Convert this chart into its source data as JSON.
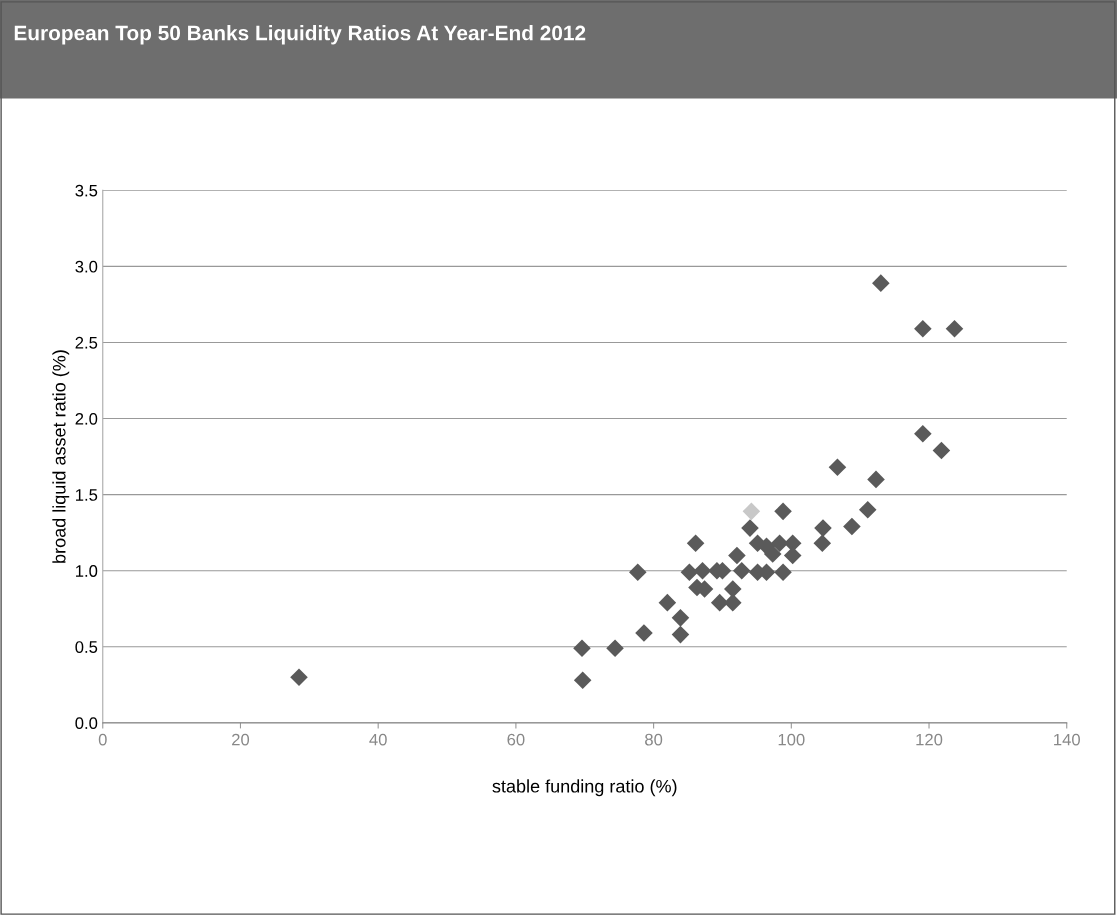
{
  "chart_data": {
    "type": "scatter",
    "title": "European Top 50 Banks Liquidity Ratios At Year-End 2012",
    "xlabel": "stable funding ratio (%)",
    "ylabel": "broad liquid asset ratio (%)",
    "series": [
      {
        "color": "#5a5a5a",
        "x": [
          28.5,
          69.6,
          69.7,
          74.4,
          77.7,
          78.6,
          82.0,
          83.9,
          83.9,
          85.2,
          86.1,
          86.3,
          87.1,
          87.4,
          89.2,
          90.0,
          89.6,
          91.5,
          91.5,
          92.1,
          92.8,
          94.0,
          95.1,
          95.1,
          96.4,
          96.4,
          97.3,
          98.3,
          98.8,
          98.8,
          100.2,
          100.2,
          104.5,
          104.6,
          106.7,
          108.8,
          111.1,
          112.3,
          113.0,
          119.1,
          119.1,
          121.8,
          123.7
        ],
        "values": [
          0.3,
          0.49,
          0.28,
          0.49,
          0.99,
          0.59,
          0.79,
          0.69,
          0.58,
          0.99,
          1.18,
          0.89,
          1.0,
          0.88,
          1.0,
          1.0,
          0.79,
          0.79,
          0.88,
          1.1,
          1.0,
          1.28,
          1.18,
          0.99,
          1.16,
          0.99,
          1.11,
          1.18,
          1.39,
          0.99,
          1.18,
          1.1,
          1.18,
          1.28,
          1.68,
          1.29,
          1.4,
          1.6,
          2.89,
          2.59,
          1.9,
          1.79,
          2.59
        ]
      },
      {
        "color": "#c8c8c8",
        "x": [
          94.2
        ],
        "values": [
          1.39
        ]
      }
    ],
    "xlim": [
      0,
      140
    ],
    "xticks": [
      0,
      20,
      40,
      60,
      80,
      100,
      120,
      140
    ],
    "ylim": [
      0,
      3.5
    ],
    "yticks": [
      {
        "value": 0,
        "label": "0.0"
      },
      {
        "value": 0.5,
        "label": "0.5"
      },
      {
        "value": 1,
        "label": "1.0"
      },
      {
        "value": 1.5,
        "label": "1.5"
      },
      {
        "value": 2,
        "label": "2.0"
      },
      {
        "value": 2.5,
        "label": "2.5"
      },
      {
        "value": 3,
        "label": "3.0"
      },
      {
        "value": 3.5,
        "label": "3.5"
      }
    ],
    "grid": "y",
    "marker": "diamond"
  }
}
